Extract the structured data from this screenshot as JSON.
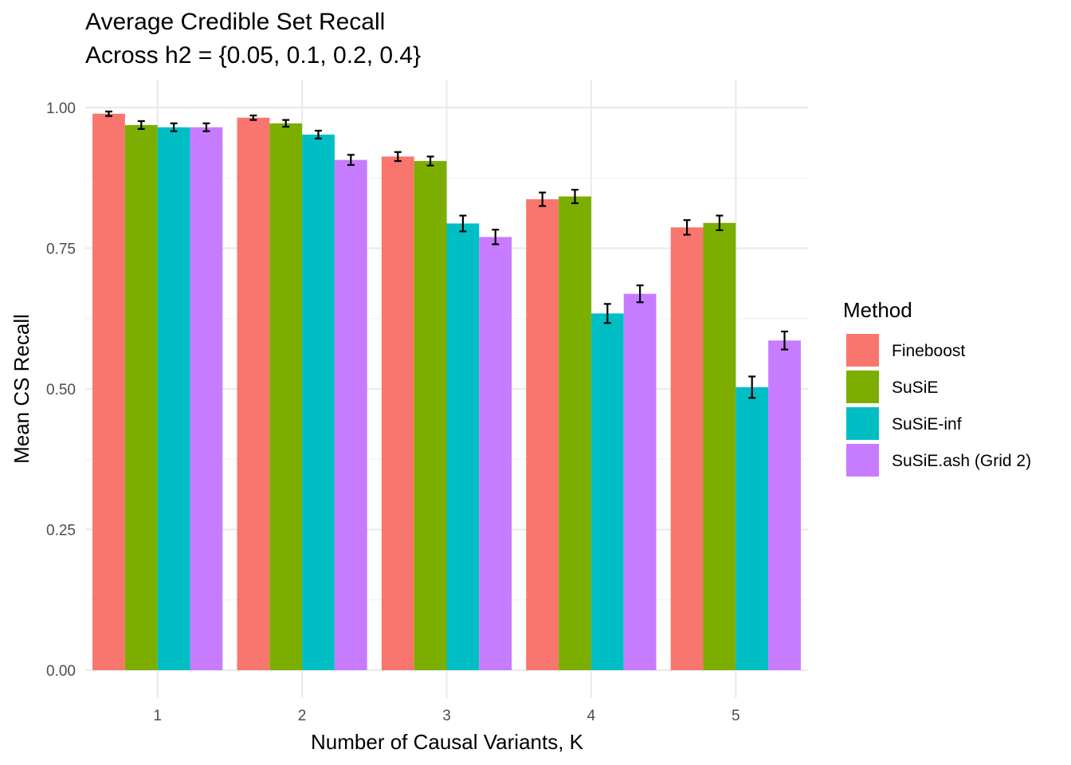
{
  "chart_data": {
    "type": "bar",
    "title": "Average Credible Set Recall",
    "subtitle": "Across h2 = {0.05, 0.1, 0.2, 0.4}",
    "xlabel": "Number of Causal Variants, K",
    "ylabel": "Mean CS Recall",
    "categories": [
      "1",
      "2",
      "3",
      "4",
      "5"
    ],
    "ylim": [
      0,
      1.05
    ],
    "yticks": [
      "0.00",
      "0.25",
      "0.50",
      "0.75",
      "1.00"
    ],
    "ytick_values": [
      0,
      0.25,
      0.5,
      0.75,
      1.0
    ],
    "grid": true,
    "legend": {
      "title": "Method",
      "position": "right"
    },
    "series": [
      {
        "name": "Fineboost",
        "color": "#F8766D",
        "values": [
          0.989,
          0.982,
          0.913,
          0.837,
          0.787
        ],
        "errors": [
          0.004,
          0.004,
          0.008,
          0.012,
          0.013
        ]
      },
      {
        "name": "SuSiE",
        "color": "#7CAE00",
        "values": [
          0.969,
          0.972,
          0.905,
          0.842,
          0.795
        ],
        "errors": [
          0.007,
          0.006,
          0.008,
          0.012,
          0.013
        ]
      },
      {
        "name": "SuSiE-inf",
        "color": "#00BFC4",
        "values": [
          0.965,
          0.952,
          0.794,
          0.634,
          0.503
        ],
        "errors": [
          0.007,
          0.007,
          0.014,
          0.017,
          0.019
        ]
      },
      {
        "name": "SuSiE.ash (Grid 2)",
        "color": "#C77CFF",
        "values": [
          0.965,
          0.907,
          0.77,
          0.669,
          0.586
        ],
        "errors": [
          0.007,
          0.009,
          0.013,
          0.015,
          0.016
        ]
      }
    ]
  }
}
